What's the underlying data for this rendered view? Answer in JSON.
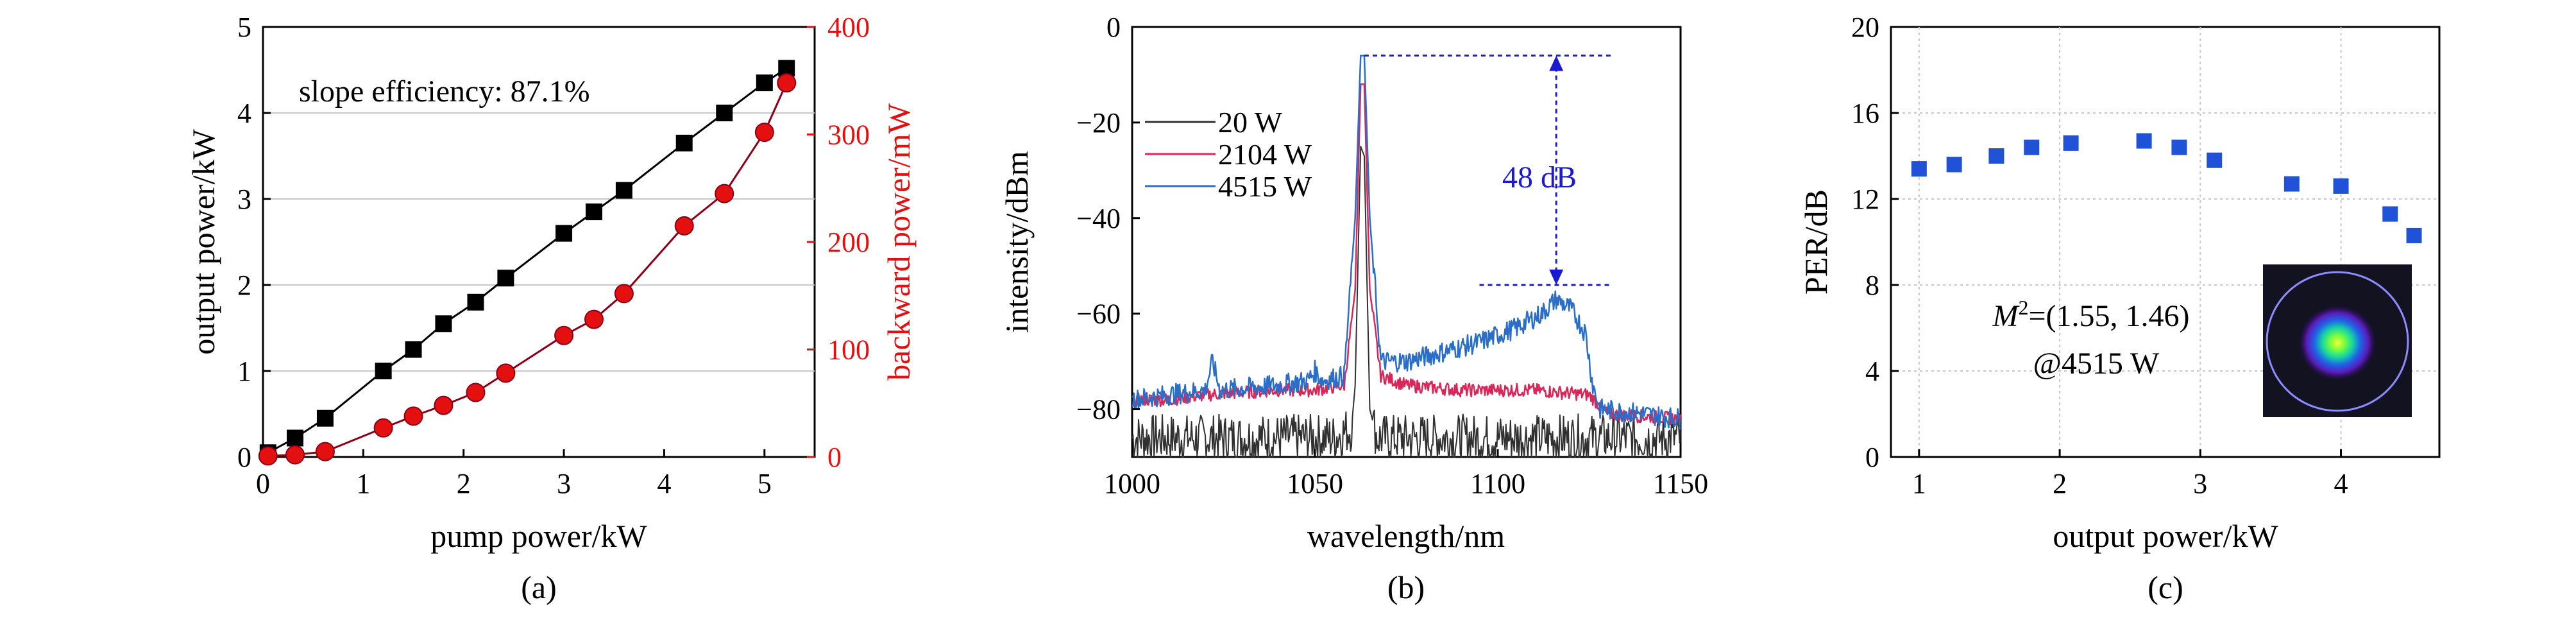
{
  "panels": [
    {
      "label": "(a)"
    },
    {
      "label": "(b)"
    },
    {
      "label": "(c)"
    }
  ],
  "colors": {
    "black": "#000000",
    "red": "#e41010",
    "dark_red": "#8b0016",
    "blue": "#1f52d6",
    "trace_20W": "#303030",
    "trace_2104W": "#d8285a",
    "trace_4515W": "#2a6ec8",
    "arrow": "#1a1ad0",
    "grid": "#c8c8c8"
  },
  "chart_data": [
    {
      "type": "line",
      "panel": "(a)",
      "xlabel": "pump power/kW",
      "ylabel": "output power/kW",
      "y2label": "backward power/mW",
      "xlim": [
        0,
        5.5
      ],
      "ylim": [
        0,
        5
      ],
      "y2lim": [
        0,
        400
      ],
      "x_ticks": [
        "0",
        "1",
        "2",
        "3",
        "4",
        "5"
      ],
      "y_ticks": [
        "0",
        "1",
        "2",
        "3",
        "4",
        "5"
      ],
      "y2_ticks": [
        "0",
        "100",
        "200",
        "300",
        "400"
      ],
      "grid": true,
      "annotation": "slope efficiency: 87.1%",
      "series": [
        {
          "marker": "square",
          "axis": "left",
          "x": [
            0.05,
            0.32,
            0.62,
            1.2,
            1.5,
            1.8,
            2.12,
            2.42,
            3.0,
            3.3,
            3.6,
            4.2,
            4.6,
            5.0,
            5.22
          ],
          "y": [
            0.05,
            0.22,
            0.45,
            1.0,
            1.25,
            1.55,
            1.8,
            2.08,
            2.6,
            2.85,
            3.1,
            3.65,
            4.0,
            4.35,
            4.52
          ]
        },
        {
          "marker": "circle",
          "axis": "right",
          "x": [
            0.05,
            0.32,
            0.62,
            1.2,
            1.5,
            1.8,
            2.12,
            2.42,
            3.0,
            3.3,
            3.6,
            4.2,
            4.6,
            5.0,
            5.22
          ],
          "y": [
            1,
            2,
            5,
            27,
            38,
            48,
            60,
            78,
            113,
            128,
            152,
            215,
            245,
            302,
            348
          ]
        }
      ]
    },
    {
      "type": "line",
      "panel": "(b)",
      "xlabel": "wavelength/nm",
      "ylabel": "intensity/dBm",
      "xlim": [
        1000,
        1150
      ],
      "ylim": [
        -90,
        0
      ],
      "x_ticks": [
        "1000",
        "1050",
        "1100",
        "1150"
      ],
      "y_ticks": [
        "−80",
        "−60",
        "−40",
        "−20",
        "0"
      ],
      "legend_position": "top-left",
      "annotation": "48 dB",
      "series": [
        {
          "name": "20 W",
          "x": [
            1000,
            1020,
            1040,
            1055,
            1060,
            1061,
            1062.5,
            1063.5,
            1065,
            1067,
            1080,
            1100,
            1120,
            1150
          ],
          "y": [
            -86,
            -86,
            -86,
            -86,
            -84,
            -75,
            -25,
            -27,
            -80,
            -86,
            -86,
            -86,
            -86,
            -86
          ]
        },
        {
          "name": "2104 W",
          "x": [
            1000,
            1010,
            1020,
            1040,
            1050,
            1058,
            1061,
            1062.5,
            1063.5,
            1065,
            1068,
            1075,
            1090,
            1110,
            1125,
            1130,
            1150
          ],
          "y": [
            -78,
            -78,
            -77,
            -76,
            -76,
            -75,
            -55,
            -12,
            -12,
            -55,
            -73,
            -75,
            -76,
            -76,
            -77,
            -81,
            -82
          ]
        },
        {
          "name": "4515 W",
          "x": [
            1000,
            1010,
            1020,
            1022,
            1024,
            1040,
            1048,
            1050,
            1052,
            1058,
            1061,
            1062.5,
            1063.5,
            1065,
            1068,
            1075,
            1085,
            1095,
            1105,
            1112,
            1116,
            1120,
            1124,
            1126,
            1128,
            1140,
            1150
          ],
          "y": [
            -78,
            -77,
            -76,
            -70,
            -76,
            -75,
            -74,
            -72,
            -74,
            -73,
            -40,
            -6,
            -6,
            -40,
            -70,
            -70,
            -68,
            -66,
            -63,
            -60,
            -57,
            -59,
            -64,
            -75,
            -80,
            -81,
            -82
          ]
        }
      ]
    },
    {
      "type": "scatter",
      "panel": "(c)",
      "xlabel": "output power/kW",
      "ylabel": "PER/dB",
      "xlim": [
        0.8,
        4.7
      ],
      "ylim": [
        0,
        20
      ],
      "x_ticks": [
        "1",
        "2",
        "3",
        "4"
      ],
      "y_ticks": [
        "0",
        "4",
        "8",
        "12",
        "16",
        "20"
      ],
      "grid": true,
      "annotation_m2_symbol": "M",
      "annotation_m2_sup": "2",
      "annotation_m2_value": "=(1.55, 1.46)",
      "annotation_power": "@4515 W",
      "series": [
        {
          "marker": "square",
          "x": [
            1.0,
            1.25,
            1.55,
            1.8,
            2.08,
            2.6,
            2.85,
            3.1,
            3.65,
            4.0,
            4.35,
            4.52
          ],
          "y": [
            13.4,
            13.6,
            14.0,
            14.4,
            14.6,
            14.7,
            14.4,
            13.8,
            12.7,
            12.6,
            11.3,
            10.3
          ]
        }
      ]
    }
  ]
}
